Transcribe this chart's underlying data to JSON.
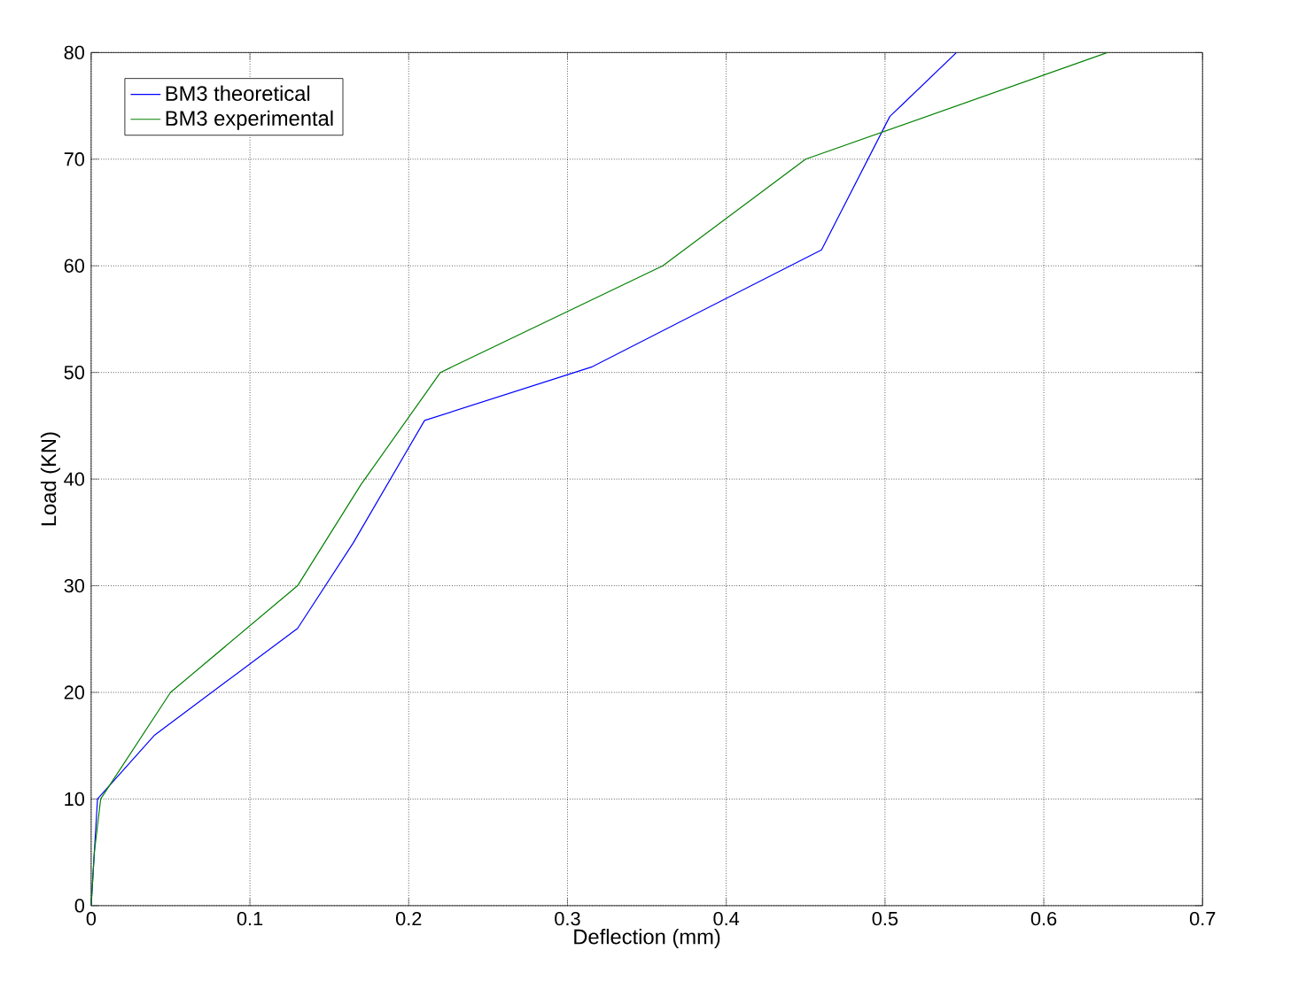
{
  "chart_data": {
    "type": "line",
    "xlabel": "Deflection (mm)",
    "ylabel": "Load (KN)",
    "xlim": [
      0,
      0.7
    ],
    "ylim": [
      0,
      80
    ],
    "xticks": [
      0,
      0.1,
      0.2,
      0.3,
      0.4,
      0.5,
      0.6,
      0.7
    ],
    "yticks": [
      0,
      10,
      20,
      30,
      40,
      50,
      60,
      70,
      80
    ],
    "grid": true,
    "legend": "top left",
    "marker": "none",
    "line_style": "solid",
    "series": [
      {
        "name": "BM3 theoretical",
        "color": "#0000ff",
        "x": [
          0,
          0.004,
          0.04,
          0.13,
          0.165,
          0.21,
          0.315,
          0.46,
          0.503,
          0.545
        ],
        "values": [
          0,
          10,
          16,
          26,
          34,
          45.5,
          50.5,
          61.5,
          74,
          80
        ]
      },
      {
        "name": "BM3 experimental",
        "color": "#008000",
        "x": [
          0,
          0.002,
          0.006,
          0.05,
          0.13,
          0.17,
          0.22,
          0.36,
          0.45,
          0.64
        ],
        "values": [
          0,
          5,
          10,
          20,
          30,
          39.5,
          50,
          60,
          70,
          80
        ]
      }
    ]
  }
}
